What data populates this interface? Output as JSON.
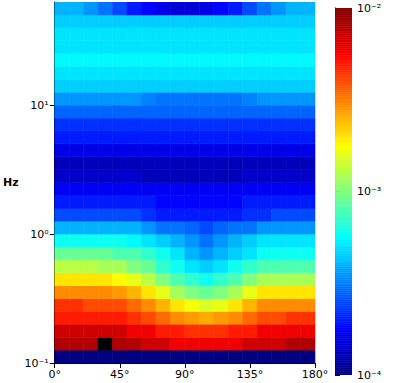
{
  "chart_data": {
    "type": "heatmap",
    "ylabel": "Hz",
    "log": "y",
    "xlim": [
      0,
      180
    ],
    "xticks": [
      {
        "value": 0,
        "label": "0°"
      },
      {
        "value": 45,
        "label": "45°"
      },
      {
        "value": 90,
        "label": "90°"
      },
      {
        "value": 135,
        "label": "135°"
      },
      {
        "value": 180,
        "label": "180°"
      }
    ],
    "ylim": [
      0.1,
      63.1
    ],
    "yticks": [
      {
        "value": 0.1,
        "label": "10⁻¹"
      },
      {
        "value": 1,
        "label": "10⁰"
      },
      {
        "value": 10,
        "label": "10¹"
      }
    ],
    "x_edges": [
      0,
      10,
      20,
      30,
      40,
      50,
      60,
      70,
      80,
      90,
      100,
      110,
      120,
      130,
      140,
      150,
      160,
      170,
      180
    ],
    "y_edges": [
      0.1,
      0.126,
      0.158,
      0.2,
      0.251,
      0.316,
      0.398,
      0.501,
      0.631,
      0.794,
      1,
      1.26,
      1.58,
      2,
      2.51,
      3.16,
      3.98,
      5.01,
      6.31,
      7.94,
      10,
      12.6,
      15.8,
      20,
      25.1,
      31.6,
      39.8,
      50.1,
      63.1
    ],
    "values": [
      [
        0.0001,
        0.0001,
        0.0001,
        0.0001,
        0.0001,
        0.0001,
        0.0001,
        0.0001,
        0.0001,
        0.0001,
        0.0001,
        0.0001,
        0.0001,
        0.0001,
        0.0001,
        0.0001,
        0.0001,
        0.0001
      ],
      [
        0.008,
        0.008,
        0.008,
        0.02,
        0.008,
        0.008,
        0.007,
        0.007,
        0.006,
        0.006,
        0.006,
        0.006,
        0.006,
        0.007,
        0.007,
        0.007,
        0.008,
        0.008
      ],
      [
        0.007,
        0.007,
        0.007,
        0.007,
        0.007,
        0.006,
        0.006,
        0.005,
        0.005,
        0.0045,
        0.0045,
        0.0045,
        0.005,
        0.005,
        0.006,
        0.006,
        0.006,
        0.006
      ],
      [
        0.005,
        0.005,
        0.005,
        0.005,
        0.005,
        0.0045,
        0.004,
        0.0035,
        0.003,
        0.0028,
        0.0026,
        0.0028,
        0.003,
        0.0035,
        0.004,
        0.004,
        0.0045,
        0.0045
      ],
      [
        0.0045,
        0.0045,
        0.004,
        0.004,
        0.004,
        0.0035,
        0.003,
        0.0025,
        0.002,
        0.0017,
        0.0015,
        0.0016,
        0.002,
        0.0025,
        0.003,
        0.003,
        0.003,
        0.003
      ],
      [
        0.003,
        0.003,
        0.003,
        0.003,
        0.0028,
        0.0025,
        0.002,
        0.0016,
        0.0012,
        0.001,
        0.0009,
        0.001,
        0.0012,
        0.0016,
        0.002,
        0.002,
        0.002,
        0.002
      ],
      [
        0.002,
        0.002,
        0.002,
        0.002,
        0.0018,
        0.0016,
        0.0013,
        0.001,
        0.0008,
        0.0007,
        0.0006,
        0.0007,
        0.0008,
        0.001,
        0.0012,
        0.0012,
        0.0012,
        0.0012
      ],
      [
        0.0013,
        0.0013,
        0.0013,
        0.0012,
        0.0012,
        0.001,
        0.0009,
        0.0007,
        0.0006,
        0.0005,
        0.00045,
        0.0005,
        0.0006,
        0.0007,
        0.0008,
        0.0008,
        0.0008,
        0.0008
      ],
      [
        0.0009,
        0.0009,
        0.0009,
        0.0009,
        0.0008,
        0.0008,
        0.0007,
        0.0006,
        0.0005,
        0.0004,
        0.00035,
        0.0004,
        0.00045,
        0.0005,
        0.0006,
        0.0006,
        0.0006,
        0.0006
      ],
      [
        0.0006,
        0.0006,
        0.0006,
        0.0006,
        0.0006,
        0.00055,
        0.0005,
        0.00045,
        0.0004,
        0.00035,
        0.0003,
        0.00035,
        0.0004,
        0.00045,
        0.0005,
        0.0005,
        0.0005,
        0.0005
      ],
      [
        0.0004,
        0.0004,
        0.0004,
        0.0004,
        0.0004,
        0.0004,
        0.00035,
        0.0003,
        0.0003,
        0.00028,
        0.00025,
        0.00028,
        0.0003,
        0.0003,
        0.00035,
        0.00035,
        0.00035,
        0.00035
      ],
      [
        0.00025,
        0.00025,
        0.00025,
        0.00025,
        0.00025,
        0.00025,
        0.00022,
        0.0002,
        0.0002,
        0.0002,
        0.0002,
        0.0002,
        0.0002,
        0.00022,
        0.00022,
        0.00025,
        0.00025,
        0.00025
      ],
      [
        0.0002,
        0.0002,
        0.0002,
        0.0002,
        0.0002,
        0.0002,
        0.0002,
        0.00018,
        0.00018,
        0.00018,
        0.00018,
        0.00018,
        0.00018,
        0.0002,
        0.0002,
        0.0002,
        0.0002,
        0.0002
      ],
      [
        0.00017,
        0.00017,
        0.00017,
        0.00017,
        0.00017,
        0.00017,
        0.00017,
        0.00017,
        0.00017,
        0.00017,
        0.00017,
        0.00017,
        0.00017,
        0.00017,
        0.00017,
        0.00017,
        0.00017,
        0.00017
      ],
      [
        0.00014,
        0.00014,
        0.00014,
        0.00014,
        0.00014,
        0.00014,
        0.00013,
        0.00013,
        0.00013,
        0.00013,
        0.00013,
        0.00013,
        0.00013,
        0.00014,
        0.00014,
        0.00014,
        0.00014,
        0.00014
      ],
      [
        0.00013,
        0.00013,
        0.00013,
        0.00013,
        0.00013,
        0.00013,
        0.00013,
        0.00013,
        0.00013,
        0.00013,
        0.00013,
        0.00013,
        0.00013,
        0.00013,
        0.00013,
        0.00013,
        0.00013,
        0.00013
      ],
      [
        0.00016,
        0.00016,
        0.00016,
        0.00016,
        0.00016,
        0.00016,
        0.00016,
        0.00016,
        0.00016,
        0.00016,
        0.00016,
        0.00016,
        0.00016,
        0.00016,
        0.00016,
        0.00016,
        0.00016,
        0.00016
      ],
      [
        0.0002,
        0.0002,
        0.0002,
        0.0002,
        0.0002,
        0.0002,
        0.0002,
        0.0002,
        0.0002,
        0.0002,
        0.0002,
        0.0002,
        0.0002,
        0.0002,
        0.0002,
        0.0002,
        0.0002,
        0.0002
      ],
      [
        0.00022,
        0.00022,
        0.00022,
        0.00022,
        0.00022,
        0.00022,
        0.00022,
        0.00022,
        0.00022,
        0.00022,
        0.00022,
        0.00022,
        0.00022,
        0.00022,
        0.00022,
        0.00022,
        0.00022,
        0.00022
      ],
      [
        0.00028,
        0.00028,
        0.00028,
        0.00028,
        0.00028,
        0.00028,
        0.00028,
        0.00028,
        0.00028,
        0.00028,
        0.00028,
        0.00028,
        0.00028,
        0.00028,
        0.00028,
        0.00028,
        0.00028,
        0.00028
      ],
      [
        0.00035,
        0.00035,
        0.00035,
        0.00035,
        0.00035,
        0.00035,
        0.00032,
        0.0003,
        0.0003,
        0.0003,
        0.0003,
        0.0003,
        0.0003,
        0.00032,
        0.00035,
        0.00035,
        0.00035,
        0.00035
      ],
      [
        0.00045,
        0.00045,
        0.00045,
        0.00045,
        0.00045,
        0.00045,
        0.00045,
        0.00045,
        0.00045,
        0.00045,
        0.00045,
        0.00045,
        0.00045,
        0.00045,
        0.00045,
        0.00045,
        0.00045,
        0.00045
      ],
      [
        0.0005,
        0.0005,
        0.0005,
        0.0005,
        0.0005,
        0.0005,
        0.0005,
        0.0005,
        0.0005,
        0.0005,
        0.0005,
        0.0005,
        0.0005,
        0.0005,
        0.0005,
        0.0005,
        0.0005,
        0.0005
      ],
      [
        0.00055,
        0.00055,
        0.00055,
        0.00055,
        0.00055,
        0.00055,
        0.00055,
        0.00055,
        0.00055,
        0.00055,
        0.00055,
        0.00055,
        0.00055,
        0.00055,
        0.00055,
        0.00055,
        0.00055,
        0.00055
      ],
      [
        0.0005,
        0.0005,
        0.0005,
        0.0005,
        0.0005,
        0.0005,
        0.0005,
        0.0005,
        0.0005,
        0.0005,
        0.0005,
        0.0005,
        0.0005,
        0.0005,
        0.0005,
        0.0005,
        0.0005,
        0.0005
      ],
      [
        0.0005,
        0.0005,
        0.0005,
        0.0005,
        0.0005,
        0.0005,
        0.0005,
        0.0005,
        0.0005,
        0.0005,
        0.0005,
        0.0005,
        0.0005,
        0.0005,
        0.0005,
        0.0005,
        0.0005,
        0.0005
      ],
      [
        0.00045,
        0.00045,
        0.00045,
        0.00045,
        0.00045,
        0.00045,
        0.00045,
        0.00045,
        0.00045,
        0.00045,
        0.00045,
        0.00045,
        0.00045,
        0.00045,
        0.00045,
        0.00045,
        0.00045,
        0.00045
      ],
      [
        0.0004,
        0.0004,
        0.00035,
        0.0003,
        0.00025,
        0.0002,
        0.00018,
        0.00016,
        0.00015,
        0.00015,
        0.00016,
        0.00018,
        0.0002,
        0.00025,
        0.0003,
        0.00035,
        0.0004,
        0.0004
      ]
    ],
    "colorbar": {
      "range": [
        0.0001,
        0.01
      ],
      "log": true,
      "ticks": [
        {
          "value": 0.0001,
          "label": "10⁻⁴"
        },
        {
          "value": 0.001,
          "label": "10⁻³"
        },
        {
          "value": 0.01,
          "label": "10⁻²"
        }
      ]
    }
  }
}
